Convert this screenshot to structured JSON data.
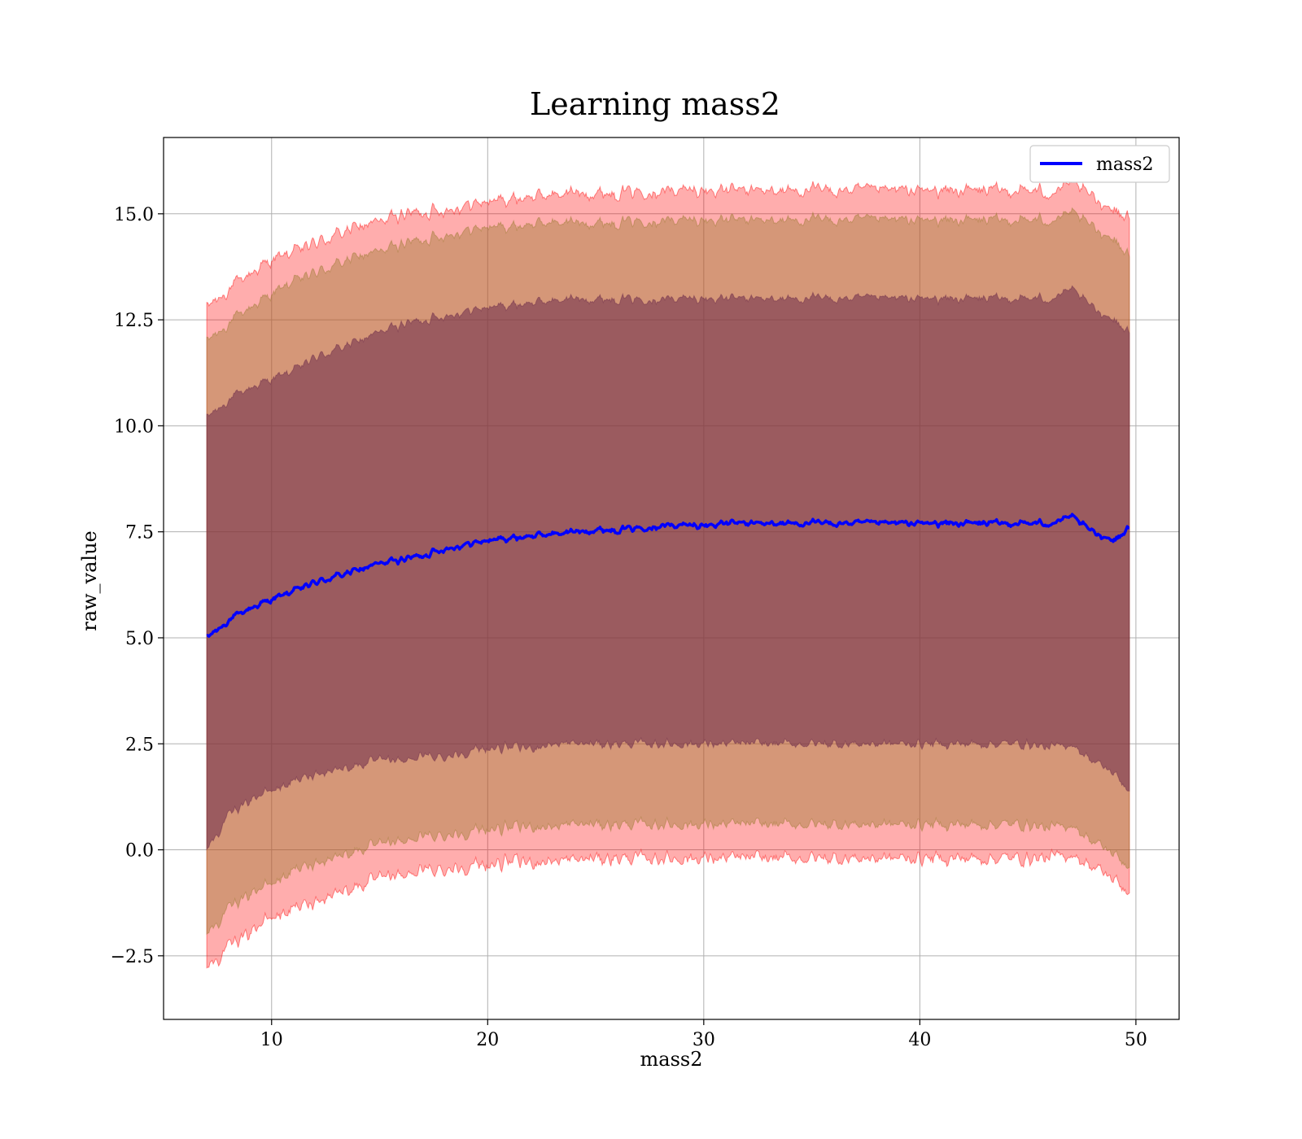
{
  "chart_data": {
    "type": "line",
    "title": "Learning mass2",
    "xlabel": "mass2",
    "ylabel": "raw_value",
    "xlim": [
      5,
      52
    ],
    "ylim": [
      -4.0,
      16.8
    ],
    "xticks": [
      10,
      20,
      30,
      40,
      50
    ],
    "xtick_labels": [
      "10",
      "20",
      "30",
      "40",
      "50"
    ],
    "yticks": [
      -2.5,
      0.0,
      2.5,
      5.0,
      7.5,
      10.0,
      12.5,
      15.0
    ],
    "ytick_labels": [
      "−2.5",
      "0.0",
      "2.5",
      "5.0",
      "7.5",
      "10.0",
      "12.5",
      "15.0"
    ],
    "grid": true,
    "legend": {
      "placement": "top-right",
      "entries": [
        "mass2"
      ]
    },
    "colors": {
      "line": "#0000ff",
      "band_outer": "#ff0000",
      "band_mid": "#9a7a2f",
      "band_inner": "#6b2a4a"
    },
    "series": [
      {
        "name": "mass2",
        "x": [
          7.0,
          8.0,
          9.0,
          10.0,
          11.0,
          12.0,
          13.0,
          14.0,
          15.0,
          16.0,
          17.0,
          18.0,
          19.0,
          20.0,
          21.0,
          22.0,
          23.0,
          24.0,
          25.0,
          26.0,
          27.0,
          28.0,
          29.0,
          30.0,
          31.0,
          32.0,
          33.0,
          34.0,
          35.0,
          36.0,
          37.0,
          38.0,
          39.0,
          40.0,
          41.0,
          42.0,
          43.0,
          44.0,
          45.0,
          46.0,
          47.0,
          48.0,
          49.0,
          49.7
        ],
        "y": [
          5.0,
          5.4,
          5.7,
          5.9,
          6.1,
          6.3,
          6.45,
          6.6,
          6.75,
          6.85,
          6.95,
          7.1,
          7.2,
          7.3,
          7.35,
          7.4,
          7.45,
          7.5,
          7.55,
          7.55,
          7.6,
          7.65,
          7.65,
          7.65,
          7.7,
          7.7,
          7.7,
          7.7,
          7.7,
          7.7,
          7.7,
          7.7,
          7.7,
          7.7,
          7.7,
          7.7,
          7.7,
          7.7,
          7.7,
          7.7,
          7.85,
          7.5,
          7.3,
          7.6
        ]
      }
    ],
    "bands": [
      {
        "sigma": 1,
        "lower": [
          0.0,
          0.8,
          1.2,
          1.4,
          1.6,
          1.8,
          1.9,
          2.0,
          2.1,
          2.1,
          2.2,
          2.2,
          2.3,
          2.4,
          2.4,
          2.4,
          2.5,
          2.5,
          2.5,
          2.5,
          2.5,
          2.5,
          2.5,
          2.5,
          2.5,
          2.5,
          2.5,
          2.5,
          2.5,
          2.5,
          2.5,
          2.5,
          2.5,
          2.5,
          2.5,
          2.5,
          2.5,
          2.5,
          2.5,
          2.4,
          2.5,
          2.1,
          1.8,
          1.4
        ],
        "upper": [
          10.2,
          10.6,
          10.9,
          11.1,
          11.3,
          11.6,
          11.8,
          12.0,
          12.2,
          12.4,
          12.5,
          12.6,
          12.7,
          12.8,
          12.85,
          12.9,
          12.95,
          13.0,
          13.0,
          13.0,
          13.0,
          13.0,
          13.0,
          13.0,
          13.0,
          13.0,
          13.0,
          13.0,
          13.0,
          13.0,
          13.0,
          13.0,
          13.0,
          13.0,
          13.0,
          13.0,
          13.0,
          13.0,
          13.0,
          13.0,
          13.2,
          12.8,
          12.5,
          12.2
        ]
      },
      {
        "sigma": 2,
        "lower": [
          -2.0,
          -1.4,
          -1.0,
          -0.8,
          -0.5,
          -0.3,
          -0.15,
          0.0,
          0.1,
          0.2,
          0.3,
          0.35,
          0.4,
          0.5,
          0.5,
          0.55,
          0.55,
          0.6,
          0.6,
          0.6,
          0.6,
          0.6,
          0.6,
          0.6,
          0.6,
          0.6,
          0.6,
          0.6,
          0.6,
          0.6,
          0.6,
          0.6,
          0.6,
          0.6,
          0.6,
          0.6,
          0.6,
          0.6,
          0.6,
          0.5,
          0.6,
          0.2,
          -0.1,
          -0.4
        ],
        "upper": [
          12.0,
          12.4,
          12.8,
          13.1,
          13.4,
          13.6,
          13.8,
          14.0,
          14.1,
          14.3,
          14.4,
          14.5,
          14.6,
          14.7,
          14.7,
          14.75,
          14.8,
          14.8,
          14.8,
          14.8,
          14.85,
          14.85,
          14.85,
          14.85,
          14.85,
          14.85,
          14.85,
          14.85,
          14.85,
          14.85,
          14.85,
          14.85,
          14.85,
          14.85,
          14.85,
          14.85,
          14.85,
          14.85,
          14.85,
          14.85,
          15.0,
          14.7,
          14.4,
          14.0
        ]
      },
      {
        "sigma": 3,
        "lower": [
          -2.8,
          -2.3,
          -1.9,
          -1.6,
          -1.4,
          -1.2,
          -1.0,
          -0.85,
          -0.7,
          -0.6,
          -0.5,
          -0.45,
          -0.4,
          -0.35,
          -0.3,
          -0.3,
          -0.25,
          -0.25,
          -0.2,
          -0.2,
          -0.2,
          -0.2,
          -0.2,
          -0.2,
          -0.2,
          -0.2,
          -0.2,
          -0.2,
          -0.2,
          -0.2,
          -0.2,
          -0.2,
          -0.2,
          -0.2,
          -0.2,
          -0.2,
          -0.2,
          -0.2,
          -0.2,
          -0.2,
          -0.1,
          -0.4,
          -0.7,
          -1.0
        ],
        "upper": [
          12.8,
          13.2,
          13.6,
          13.9,
          14.1,
          14.3,
          14.5,
          14.7,
          14.8,
          15.0,
          15.05,
          15.1,
          15.2,
          15.3,
          15.35,
          15.4,
          15.45,
          15.5,
          15.5,
          15.5,
          15.55,
          15.55,
          15.55,
          15.55,
          15.55,
          15.55,
          15.55,
          15.55,
          15.55,
          15.55,
          15.55,
          15.55,
          15.55,
          15.55,
          15.55,
          15.55,
          15.55,
          15.55,
          15.55,
          15.5,
          15.7,
          15.4,
          15.1,
          14.9
        ]
      }
    ]
  }
}
